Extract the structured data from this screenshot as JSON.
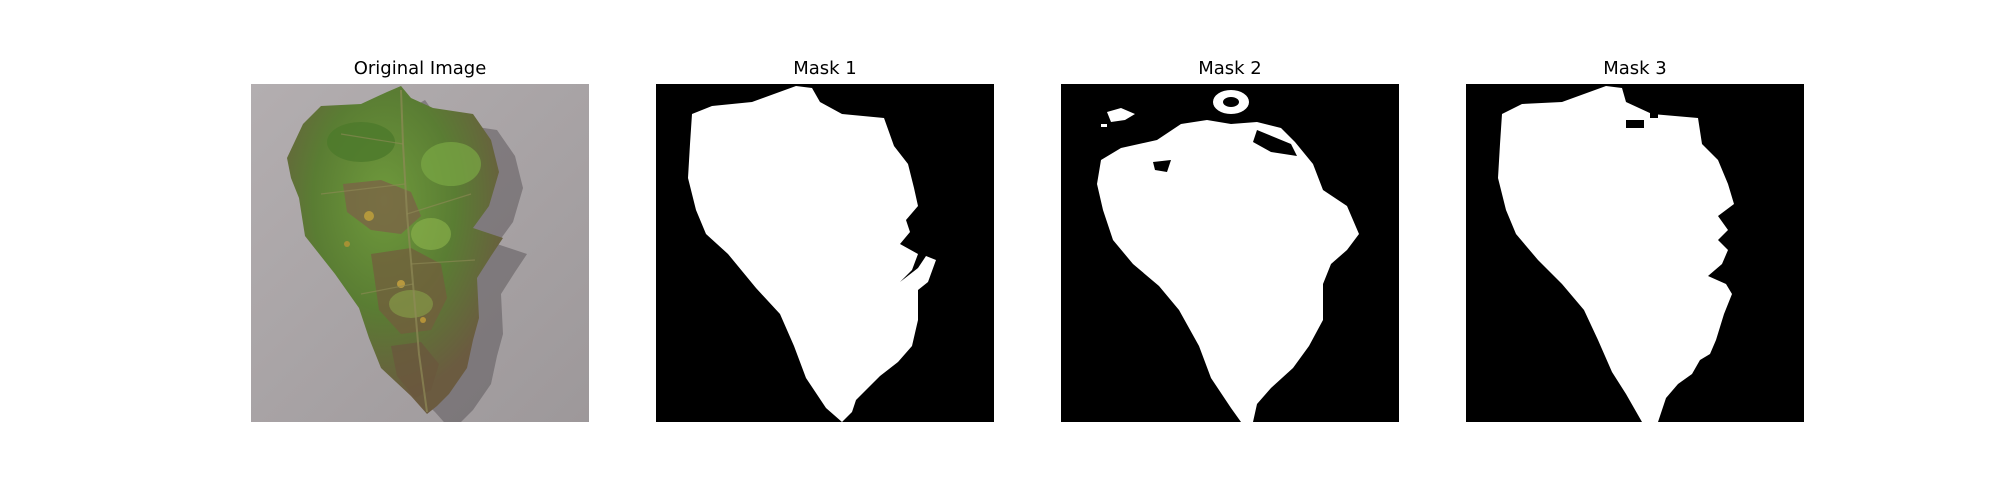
{
  "figure": {
    "panels": [
      {
        "title": "Original Image",
        "content": "leaf-photo"
      },
      {
        "title": "Mask 1",
        "content": "binary-mask"
      },
      {
        "title": "Mask 2",
        "content": "binary-mask"
      },
      {
        "title": "Mask 3",
        "content": "binary-mask"
      }
    ]
  },
  "colors": {
    "mask_background": "#000000",
    "mask_foreground": "#ffffff",
    "photo_background": "#a9a4a6",
    "leaf_green": "#5f8a35",
    "leaf_brown": "#6e5a3e"
  }
}
